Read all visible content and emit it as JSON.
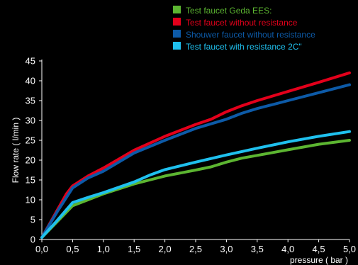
{
  "chart_data": {
    "type": "line",
    "title": "",
    "xlabel": "pressure ( bar )",
    "ylabel": "Flow rate  ( l/min )",
    "xlim": [
      0,
      5
    ],
    "ylim": [
      0,
      45
    ],
    "grid": false,
    "legend_position": "top-right",
    "x_ticks": [
      "0,0",
      "0,5",
      "1,0",
      "1,5",
      "2,0",
      "2,5",
      "3,0",
      "3,5",
      "4,0",
      "4,5",
      "5,0"
    ],
    "y_ticks": [
      "0",
      "5",
      "10",
      "15",
      "20",
      "25",
      "30",
      "35",
      "40",
      "45"
    ],
    "series": [
      {
        "name": "Test faucet Geda EES:",
        "color": "#5cb531",
        "points": [
          [
            0,
            0.5
          ],
          [
            0.25,
            4.5
          ],
          [
            0.5,
            8.5
          ],
          [
            0.75,
            10
          ],
          [
            1.0,
            11.5
          ],
          [
            1.5,
            14
          ],
          [
            1.75,
            15
          ],
          [
            2.0,
            16
          ],
          [
            2.5,
            17.5
          ],
          [
            2.75,
            18.3
          ],
          [
            3.0,
            19.5
          ],
          [
            3.25,
            20.5
          ],
          [
            3.5,
            21.2
          ],
          [
            4.0,
            22.6
          ],
          [
            4.5,
            24
          ],
          [
            5.0,
            25
          ]
        ]
      },
      {
        "name": "Test faucet without resistance",
        "color": "#e3001b",
        "points": [
          [
            0,
            0.5
          ],
          [
            0.2,
            6
          ],
          [
            0.4,
            11.5
          ],
          [
            0.5,
            13.5
          ],
          [
            0.75,
            16
          ],
          [
            1.0,
            18
          ],
          [
            1.5,
            22.5
          ],
          [
            2.0,
            26
          ],
          [
            2.5,
            29
          ],
          [
            2.75,
            30.3
          ],
          [
            3.0,
            32.2
          ],
          [
            3.25,
            33.7
          ],
          [
            3.5,
            35
          ],
          [
            4.0,
            37.3
          ],
          [
            4.5,
            39.6
          ],
          [
            5.0,
            42
          ]
        ]
      },
      {
        "name": "Shouwer faucet without resistance",
        "color": "#0d5aa7",
        "points": [
          [
            0,
            0.5
          ],
          [
            0.25,
            7
          ],
          [
            0.5,
            13
          ],
          [
            0.75,
            15.5
          ],
          [
            1.0,
            17.2
          ],
          [
            1.5,
            21.8
          ],
          [
            2.0,
            25
          ],
          [
            2.5,
            28
          ],
          [
            3.0,
            30.3
          ],
          [
            3.25,
            31.8
          ],
          [
            3.5,
            33
          ],
          [
            4.0,
            35
          ],
          [
            4.5,
            37
          ],
          [
            5.0,
            39
          ]
        ]
      },
      {
        "name": "Test faucet with resistance 2C\"",
        "color": "#1fc0ee",
        "points": [
          [
            0,
            0.5
          ],
          [
            0.25,
            4.8
          ],
          [
            0.5,
            9.3
          ],
          [
            0.75,
            10.6
          ],
          [
            1.0,
            11.8
          ],
          [
            1.5,
            14.5
          ],
          [
            1.75,
            16.2
          ],
          [
            2.0,
            17.6
          ],
          [
            2.5,
            19.5
          ],
          [
            3.0,
            21.3
          ],
          [
            3.5,
            23
          ],
          [
            4.0,
            24.6
          ],
          [
            4.5,
            26
          ],
          [
            5.0,
            27.2
          ]
        ]
      }
    ]
  }
}
